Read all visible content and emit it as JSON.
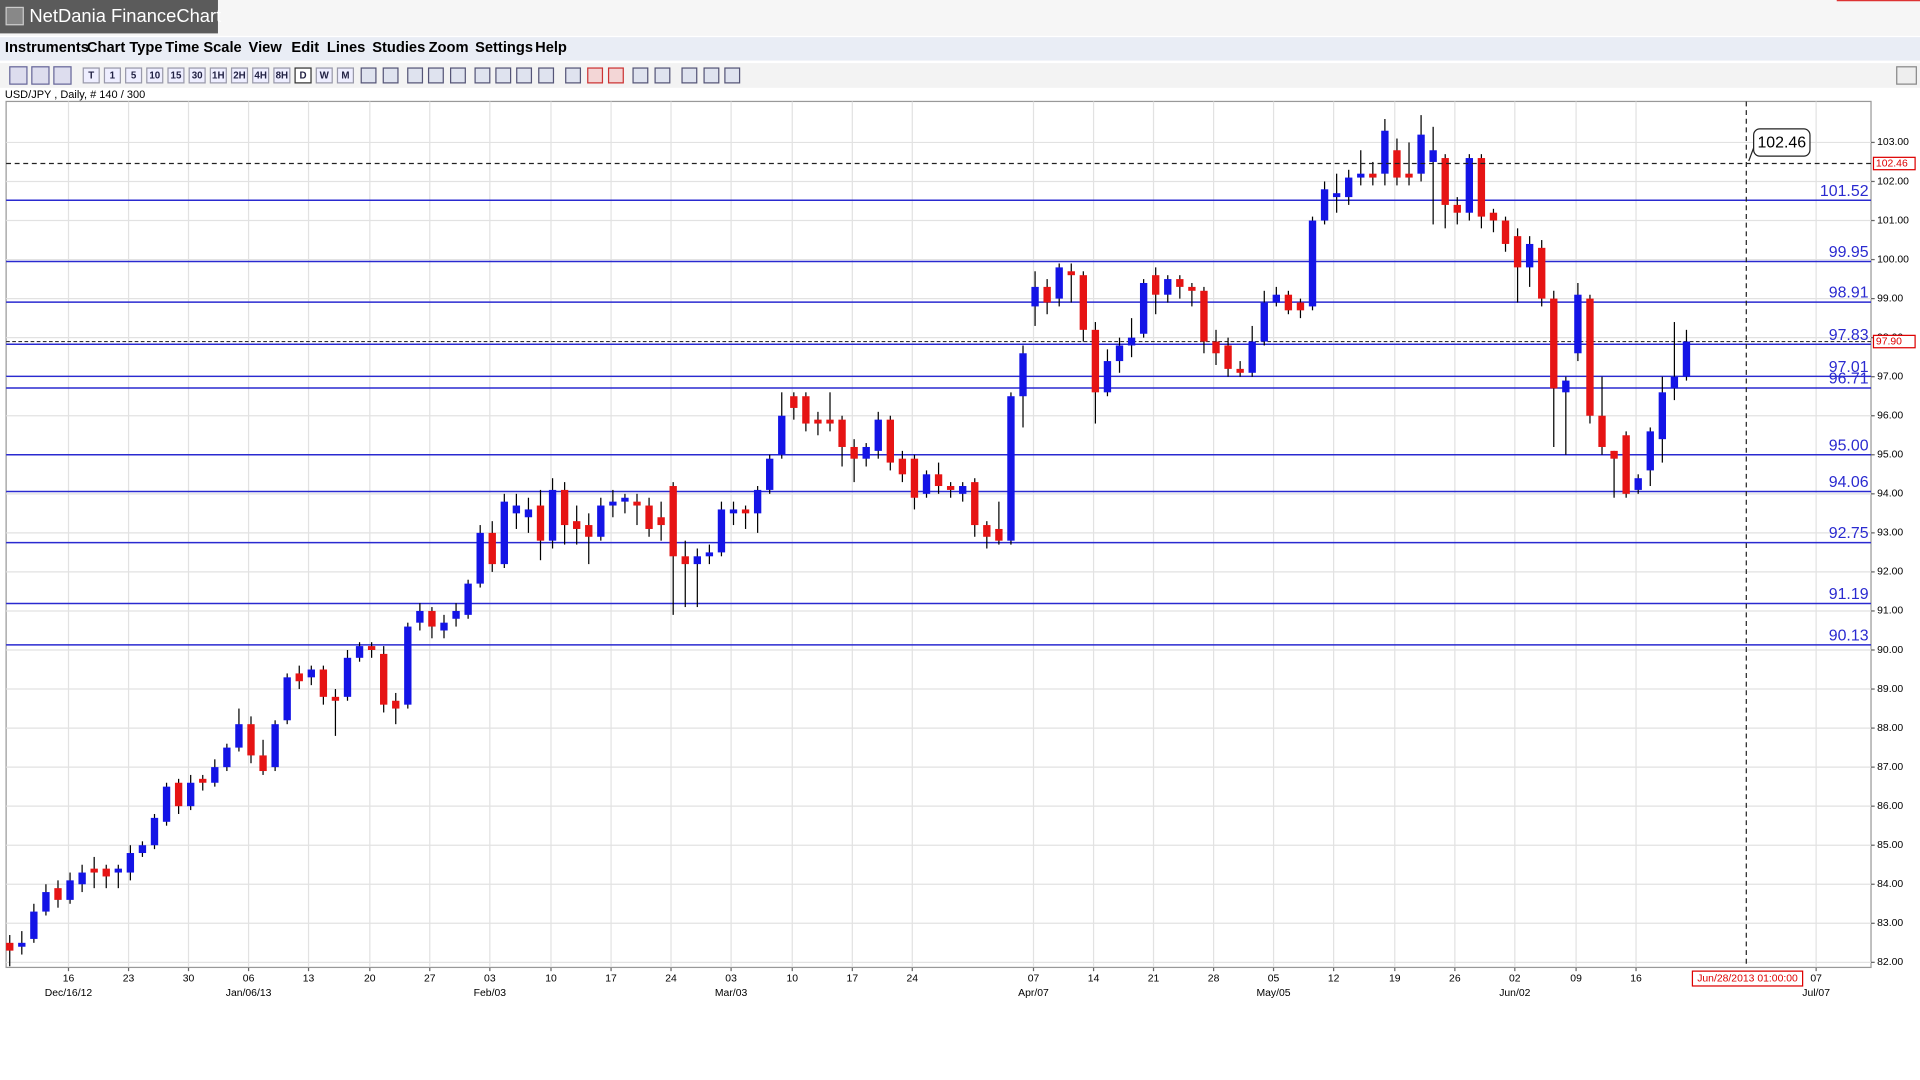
{
  "window": {
    "title": "NetDania FinanceChart"
  },
  "menu": [
    "Instruments",
    "Chart Type",
    "Time Scale",
    "View",
    "Edit",
    "Lines",
    "Studies",
    "Zoom",
    "Settings",
    "Help"
  ],
  "toolbar": [
    "T",
    "1",
    "5",
    "10",
    "15",
    "30",
    "1H",
    "2H",
    "4H",
    "8H",
    "D",
    "W",
    "M"
  ],
  "chart_data": {
    "type": "candlestick",
    "header": "USD/JPY , Daily, # 140 / 300",
    "up_color": "#1414e6",
    "down_color": "#e61414",
    "level_color": "#2a2ad0",
    "grid": true,
    "xlim": [
      -0.3,
      154.3
    ],
    "ylim": [
      81.87,
      104.05
    ],
    "open": [
      82.5,
      82.4,
      82.6,
      83.3,
      83.9,
      83.6,
      84.0,
      84.4,
      84.4,
      84.3,
      84.3,
      84.8,
      85.0,
      85.6,
      86.6,
      86.0,
      86.7,
      86.6,
      87.0,
      87.5,
      88.1,
      87.3,
      87.0,
      88.2,
      89.4,
      89.3,
      89.5,
      88.8,
      88.8,
      89.8,
      90.1,
      89.9,
      88.7,
      88.6,
      90.7,
      91.0,
      90.5,
      90.8,
      90.9,
      91.7,
      93.0,
      92.2,
      93.5,
      93.4,
      93.7,
      92.8,
      94.1,
      93.3,
      93.2,
      92.9,
      93.7,
      93.8,
      93.8,
      93.7,
      93.4,
      94.2,
      92.4,
      92.2,
      92.4,
      92.5,
      93.5,
      93.6,
      93.5,
      94.1,
      95.0,
      96.5,
      96.5,
      95.9,
      95.9,
      95.9,
      95.2,
      94.9,
      95.1,
      95.9,
      94.9,
      94.9,
      94.0,
      94.5,
      94.2,
      94.0,
      94.3,
      93.2,
      93.1,
      92.8,
      96.5,
      98.8,
      99.3,
      99.0,
      99.7,
      99.6,
      98.2,
      96.6,
      97.4,
      97.8,
      98.1,
      99.6,
      99.1,
      99.5,
      99.3,
      99.2,
      97.9,
      97.8,
      97.2,
      97.1,
      97.9,
      98.9,
      99.1,
      98.9,
      98.8,
      101.0,
      101.6,
      101.6,
      102.1,
      102.2,
      102.2,
      102.8,
      102.2,
      102.2,
      102.5,
      102.6,
      101.4,
      101.2,
      102.6,
      101.2,
      101.0,
      100.6,
      99.8,
      100.3,
      99.0,
      96.6,
      97.6,
      99.0,
      96.0,
      95.1,
      95.5,
      94.1,
      94.6,
      95.4,
      96.7,
      97.0
    ],
    "high": [
      82.7,
      82.8,
      83.5,
      84.0,
      84.1,
      84.3,
      84.5,
      84.7,
      84.5,
      84.5,
      85.0,
      85.1,
      85.8,
      86.6,
      86.7,
      86.8,
      86.8,
      87.2,
      87.6,
      88.5,
      88.3,
      87.7,
      88.2,
      89.4,
      89.6,
      89.6,
      89.6,
      89.0,
      90.0,
      90.2,
      90.2,
      90.1,
      88.9,
      90.7,
      91.2,
      91.1,
      90.9,
      91.2,
      91.8,
      93.2,
      93.3,
      94.0,
      94.0,
      93.9,
      94.1,
      94.4,
      94.3,
      93.7,
      93.5,
      93.9,
      94.1,
      94.0,
      94.0,
      93.9,
      93.8,
      94.3,
      92.8,
      92.6,
      92.7,
      93.8,
      93.8,
      93.7,
      94.2,
      95.0,
      96.6,
      96.6,
      96.6,
      96.1,
      96.6,
      96.0,
      95.4,
      95.3,
      96.1,
      96.0,
      95.1,
      95.0,
      94.6,
      94.8,
      94.3,
      94.3,
      94.4,
      93.3,
      93.8,
      96.6,
      97.8,
      99.7,
      99.5,
      99.9,
      99.9,
      99.7,
      98.4,
      97.7,
      98.0,
      98.5,
      99.5,
      99.8,
      99.6,
      99.6,
      99.4,
      99.3,
      98.2,
      98.0,
      97.4,
      98.3,
      99.2,
      99.3,
      99.2,
      99.0,
      101.1,
      102.0,
      102.2,
      102.3,
      102.8,
      102.5,
      103.6,
      103.1,
      103.0,
      103.7,
      103.4,
      102.7,
      101.6,
      102.7,
      102.7,
      101.3,
      101.1,
      100.8,
      100.6,
      100.5,
      99.2,
      97.0,
      99.4,
      99.1,
      97.0,
      95.1,
      95.6,
      94.5,
      95.7,
      97.0,
      98.4,
      98.2
    ],
    "low": [
      81.9,
      82.2,
      82.5,
      83.2,
      83.4,
      83.5,
      83.8,
      83.9,
      83.9,
      83.9,
      84.1,
      84.7,
      84.9,
      85.5,
      85.8,
      85.9,
      86.4,
      86.5,
      86.9,
      87.4,
      87.1,
      86.8,
      86.9,
      88.1,
      89.0,
      89.1,
      88.6,
      87.8,
      88.7,
      89.7,
      89.8,
      88.4,
      88.1,
      88.5,
      90.5,
      90.3,
      90.3,
      90.6,
      90.8,
      91.6,
      92.0,
      92.1,
      93.1,
      93.0,
      92.3,
      92.6,
      92.7,
      92.7,
      92.2,
      92.8,
      93.4,
      93.5,
      93.2,
      92.9,
      92.8,
      90.9,
      91.1,
      91.1,
      92.2,
      92.4,
      93.2,
      93.1,
      93.0,
      94.0,
      94.9,
      95.9,
      95.6,
      95.5,
      95.6,
      94.7,
      94.3,
      94.7,
      94.9,
      94.6,
      94.3,
      93.6,
      93.9,
      94.0,
      93.9,
      93.8,
      92.9,
      92.6,
      92.7,
      92.7,
      95.7,
      98.3,
      98.6,
      98.8,
      98.9,
      97.9,
      95.8,
      96.5,
      97.1,
      97.5,
      98.0,
      98.6,
      98.9,
      99.0,
      98.8,
      97.6,
      97.3,
      97.0,
      97.0,
      97.0,
      97.8,
      98.8,
      98.6,
      98.5,
      98.7,
      100.9,
      101.2,
      101.4,
      101.9,
      101.9,
      101.9,
      101.9,
      101.9,
      102.0,
      100.9,
      100.8,
      100.9,
      101.0,
      100.8,
      100.7,
      100.2,
      98.9,
      99.3,
      98.8,
      95.2,
      95.0,
      97.4,
      95.8,
      95.0,
      93.9,
      93.9,
      94.0,
      94.2,
      94.8,
      96.4,
      96.9
    ],
    "close": [
      82.3,
      82.5,
      83.3,
      83.8,
      83.6,
      84.1,
      84.3,
      84.3,
      84.2,
      84.4,
      84.8,
      85.0,
      85.7,
      86.5,
      86.0,
      86.6,
      86.6,
      87.0,
      87.5,
      88.1,
      87.3,
      86.9,
      88.1,
      89.3,
      89.2,
      89.5,
      88.8,
      88.7,
      89.8,
      90.1,
      90.0,
      88.6,
      88.5,
      90.6,
      91.0,
      90.6,
      90.7,
      91.0,
      91.7,
      93.0,
      92.2,
      93.8,
      93.7,
      93.6,
      92.8,
      94.1,
      93.2,
      93.1,
      92.9,
      93.7,
      93.8,
      93.9,
      93.7,
      93.1,
      93.2,
      92.4,
      92.2,
      92.4,
      92.5,
      93.6,
      93.6,
      93.5,
      94.1,
      94.9,
      96.0,
      96.2,
      95.8,
      95.8,
      95.8,
      95.2,
      94.9,
      95.2,
      95.9,
      94.8,
      94.5,
      93.9,
      94.5,
      94.2,
      94.1,
      94.2,
      93.2,
      92.9,
      92.8,
      96.5,
      97.6,
      99.3,
      98.9,
      99.8,
      99.6,
      98.2,
      96.6,
      97.4,
      97.8,
      98.0,
      99.4,
      99.1,
      99.5,
      99.3,
      99.2,
      97.9,
      97.6,
      97.2,
      97.1,
      97.9,
      98.9,
      99.1,
      98.7,
      98.7,
      101.0,
      101.8,
      101.7,
      102.1,
      102.2,
      102.1,
      103.3,
      102.1,
      102.1,
      103.2,
      102.8,
      101.4,
      101.2,
      102.6,
      101.1,
      101.0,
      100.4,
      99.8,
      100.4,
      99.0,
      96.7,
      96.9,
      99.1,
      96.0,
      95.2,
      94.9,
      94.0,
      94.4,
      95.6,
      96.6,
      97.0,
      97.9
    ],
    "yticks": [
      {
        "value": 82,
        "label": "82.00"
      },
      {
        "value": 83,
        "label": "83.00"
      },
      {
        "value": 84,
        "label": "84.00"
      },
      {
        "value": 85,
        "label": "85.00"
      },
      {
        "value": 86,
        "label": "86.00"
      },
      {
        "value": 87,
        "label": "87.00"
      },
      {
        "value": 88,
        "label": "88.00"
      },
      {
        "value": 89,
        "label": "89.00"
      },
      {
        "value": 90,
        "label": "90.00"
      },
      {
        "value": 91,
        "label": "91.00"
      },
      {
        "value": 92,
        "label": "92.00"
      },
      {
        "value": 93,
        "label": "93.00"
      },
      {
        "value": 94,
        "label": "94.00"
      },
      {
        "value": 95,
        "label": "95.00"
      },
      {
        "value": 96,
        "label": "96.00"
      },
      {
        "value": 97,
        "label": "97.00"
      },
      {
        "value": 98,
        "label": "98.00"
      },
      {
        "value": 99,
        "label": "99.00"
      },
      {
        "value": 100,
        "label": "100.00"
      },
      {
        "value": 101,
        "label": "101.00"
      },
      {
        "value": 102,
        "label": "102.00"
      },
      {
        "value": 103,
        "label": "103.00"
      }
    ],
    "xticks": [
      {
        "value": 4.87,
        "label": "16"
      },
      {
        "value": 9.85,
        "label": "23"
      },
      {
        "value": 14.82,
        "label": "30"
      },
      {
        "value": 19.8,
        "label": "06"
      },
      {
        "value": 24.77,
        "label": "13"
      },
      {
        "value": 29.85,
        "label": "20"
      },
      {
        "value": 34.82,
        "label": "27"
      },
      {
        "value": 39.8,
        "label": "03"
      },
      {
        "value": 44.87,
        "label": "10"
      },
      {
        "value": 49.85,
        "label": "17"
      },
      {
        "value": 54.82,
        "label": "24"
      },
      {
        "value": 59.8,
        "label": "03"
      },
      {
        "value": 64.87,
        "label": "10"
      },
      {
        "value": 69.85,
        "label": "17"
      },
      {
        "value": 74.82,
        "label": "24"
      },
      {
        "value": 84.87,
        "label": "07"
      },
      {
        "value": 89.85,
        "label": "14"
      },
      {
        "value": 94.82,
        "label": "21"
      },
      {
        "value": 99.8,
        "label": "28"
      },
      {
        "value": 104.77,
        "label": "05"
      },
      {
        "value": 109.75,
        "label": "12"
      },
      {
        "value": 114.82,
        "label": "19"
      },
      {
        "value": 119.8,
        "label": "26"
      },
      {
        "value": 124.77,
        "label": "02"
      },
      {
        "value": 129.85,
        "label": "09"
      },
      {
        "value": 134.82,
        "label": "16"
      },
      {
        "value": 149.75,
        "label": "07"
      }
    ],
    "xticks_major": [
      {
        "value": 4.87,
        "label": "Dec/16/12"
      },
      {
        "value": 19.8,
        "label": "Jan/06/13"
      },
      {
        "value": 39.8,
        "label": "Feb/03"
      },
      {
        "value": 59.8,
        "label": "Mar/03"
      },
      {
        "value": 84.87,
        "label": "Apr/07"
      },
      {
        "value": 104.77,
        "label": "May/05"
      },
      {
        "value": 124.77,
        "label": "Jun/02"
      },
      {
        "value": 149.75,
        "label": "Jul/07"
      }
    ],
    "levels": [
      101.52,
      99.95,
      98.91,
      97.83,
      97.01,
      96.71,
      {
        "value": 95,
        "label": "95.00"
      },
      94.06,
      92.75,
      91.19,
      90.13
    ],
    "last_price": {
      "value": 97.9,
      "label": "97.90"
    },
    "crosshair": {
      "x": 143.96,
      "x_label": "Jun/28/2013 01:00:00",
      "y": 102.46
    }
  }
}
